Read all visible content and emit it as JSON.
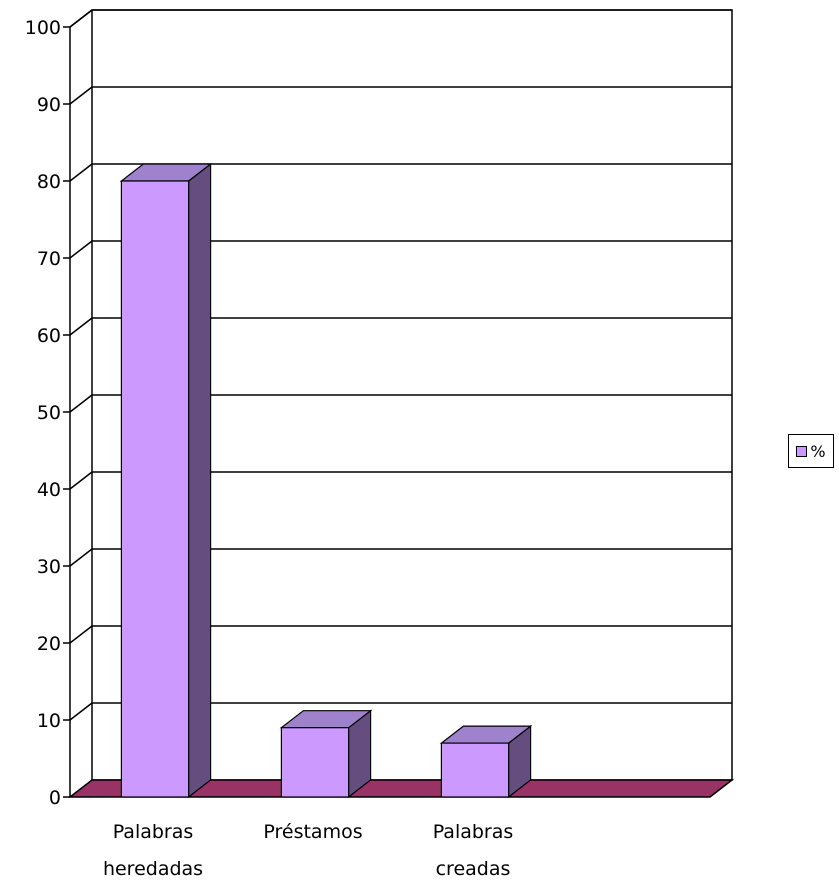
{
  "chart_data": {
    "type": "bar",
    "style": "3d-column",
    "categories": [
      [
        "Palabras",
        "heredadas"
      ],
      [
        "Préstamos"
      ],
      [
        "Palabras",
        "creadas"
      ]
    ],
    "category_count_slots": 4,
    "series": [
      {
        "name": "%",
        "values": [
          80,
          9,
          7
        ]
      }
    ],
    "ylim": [
      0,
      100
    ],
    "yticks": [
      0,
      10,
      20,
      30,
      40,
      50,
      60,
      70,
      80,
      90,
      100
    ],
    "grid": true,
    "legend_position": "right",
    "colors": {
      "bar_front": "#cc99ff",
      "bar_side": "#664d80",
      "bar_top": "#9f82cc",
      "floor": "#993366",
      "grid": "#000000"
    }
  }
}
